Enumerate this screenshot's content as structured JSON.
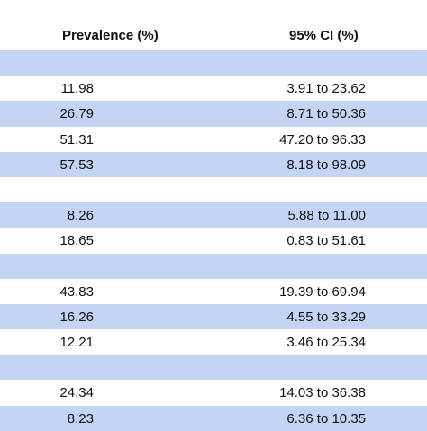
{
  "header": {
    "prevalence_label": "Prevalence (%)",
    "ci_label": "95% CI (%)"
  },
  "rows": [
    {
      "prevalence": "",
      "ci": "",
      "shade": true
    },
    {
      "prevalence": "11.98",
      "ci": "3.91 to 23.62",
      "shade": false
    },
    {
      "prevalence": "26.79",
      "ci": "8.71 to 50.36",
      "shade": true
    },
    {
      "prevalence": "51.31",
      "ci": "47.20 to 96.33",
      "shade": false
    },
    {
      "prevalence": "57.53",
      "ci": "8.18 to 98.09",
      "shade": true
    },
    {
      "prevalence": "",
      "ci": "",
      "shade": false
    },
    {
      "prevalence": "8.26",
      "ci": "5.88 to 11.00",
      "shade": true
    },
    {
      "prevalence": "18.65",
      "ci": "0.83 to 51.61",
      "shade": false
    },
    {
      "prevalence": "",
      "ci": "",
      "shade": true
    },
    {
      "prevalence": "43.83",
      "ci": "19.39 to 69.94",
      "shade": false
    },
    {
      "prevalence": "16.26",
      "ci": "4.55 to 33.29",
      "shade": true
    },
    {
      "prevalence": "12.21",
      "ci": "3.46 to 25.34",
      "shade": false
    },
    {
      "prevalence": "",
      "ci": "",
      "shade": true
    },
    {
      "prevalence": "24.34",
      "ci": "14.03 to 36.38",
      "shade": false
    },
    {
      "prevalence": "8.23",
      "ci": "6.36 to 10.35",
      "shade": true
    }
  ]
}
